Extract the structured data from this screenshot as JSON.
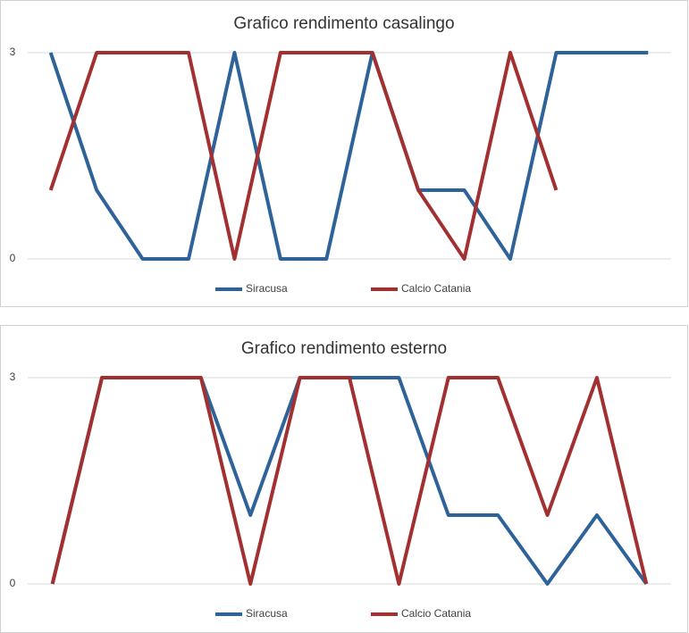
{
  "chart_data": [
    {
      "type": "line",
      "title": "Grafico rendimento casalingo",
      "ylim": [
        0,
        3
      ],
      "yticks": [
        0,
        3
      ],
      "grid": true,
      "series": [
        {
          "name": "Siracusa",
          "color": "#2e6399",
          "values": [
            3,
            1,
            0,
            0,
            3,
            0,
            0,
            3,
            1,
            1,
            0,
            3,
            3,
            3
          ]
        },
        {
          "name": "Calcio Catania",
          "color": "#a33030",
          "values": [
            1,
            3,
            3,
            3,
            0,
            3,
            3,
            3,
            1,
            0,
            3,
            1,
            null,
            null
          ]
        }
      ]
    },
    {
      "type": "line",
      "title": "Grafico rendimento esterno",
      "ylim": [
        0,
        3
      ],
      "yticks": [
        0,
        3
      ],
      "grid": true,
      "series": [
        {
          "name": "Siracusa",
          "color": "#2e6399",
          "values": [
            0,
            3,
            3,
            3,
            1,
            3,
            3,
            3,
            1,
            1,
            0,
            1,
            0
          ]
        },
        {
          "name": "Calcio Catania",
          "color": "#a33030",
          "values": [
            0,
            3,
            3,
            3,
            0,
            3,
            3,
            0,
            3,
            3,
            1,
            3,
            0
          ]
        }
      ]
    }
  ]
}
